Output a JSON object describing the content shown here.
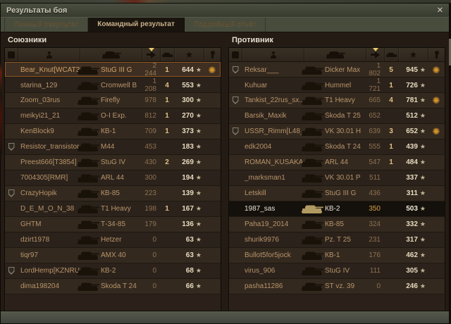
{
  "window": {
    "title": "Результаты боя"
  },
  "icons": {
    "star_glyph": "★",
    "medal_glyph": "✺",
    "close_glyph": "✕"
  },
  "tabs": [
    {
      "label": "Личный результат",
      "active": false
    },
    {
      "label": "Командный результат",
      "active": true
    },
    {
      "label": "Подробный отчёт",
      "active": false
    }
  ],
  "columns": [
    {
      "id": "platoon",
      "icon": "platoon-icon"
    },
    {
      "id": "player",
      "icon": "player-icon"
    },
    {
      "id": "vehicle",
      "icon": "tank-icon"
    },
    {
      "id": "damage",
      "icon": "damage-icon",
      "sorted": "desc"
    },
    {
      "id": "frags",
      "icon": "destroyed-tank-icon"
    },
    {
      "id": "xp",
      "icon": "star-icon"
    },
    {
      "id": "medals",
      "icon": "medal-icon"
    }
  ],
  "colors": {
    "accent_text": "#b8946a",
    "xp_text": "#e8dbbf",
    "frag_text": "#e3c084",
    "damage_text": "#8d7150",
    "self_row_bg": "#14100b",
    "hover_outline": "#8d5926",
    "medal_gold": "#d2962f",
    "panel_bg": "#2b211a",
    "titlebar_bg": "#454939",
    "active_tab_text": "#c9b189",
    "self_tank_icon": "#b19a62"
  },
  "teams": [
    {
      "name": "Союзники",
      "rows": [
        {
          "player": "Bear_Knut[WCAT3]",
          "vehicle": "StuG III G",
          "damage": "2 244",
          "frags": "1",
          "xp": "644",
          "platoon": false,
          "medal": true,
          "highlight": "hover"
        },
        {
          "player": "starina_129",
          "vehicle": "Cromwell B",
          "damage": "1 208",
          "frags": "4",
          "xp": "553",
          "platoon": false,
          "medal": false,
          "highlight": ""
        },
        {
          "player": "Zoom_03rus",
          "vehicle": "Firefly",
          "damage": "978",
          "frags": "1",
          "xp": "300",
          "platoon": false,
          "medal": false,
          "highlight": ""
        },
        {
          "player": "meikyi21_21",
          "vehicle": "O-I Exp.",
          "damage": "812",
          "frags": "1",
          "xp": "270",
          "platoon": false,
          "medal": false,
          "highlight": ""
        },
        {
          "player": "KenBlock9",
          "vehicle": "КВ-1",
          "damage": "709",
          "frags": "1",
          "xp": "373",
          "platoon": false,
          "medal": false,
          "highlight": ""
        },
        {
          "player": "Resistor_transistor",
          "vehicle": "M44",
          "damage": "453",
          "frags": "",
          "xp": "183",
          "platoon": true,
          "medal": false,
          "highlight": ""
        },
        {
          "player": "Preest666[T3854]",
          "vehicle": "StuG IV",
          "damage": "430",
          "frags": "2",
          "xp": "269",
          "platoon": false,
          "medal": false,
          "highlight": ""
        },
        {
          "player": "7004305[RMR]",
          "vehicle": "ARL 44",
          "damage": "300",
          "frags": "",
          "xp": "194",
          "platoon": false,
          "medal": false,
          "highlight": ""
        },
        {
          "player": "CrazyHopik",
          "vehicle": "КВ-85",
          "damage": "223",
          "frags": "",
          "xp": "139",
          "platoon": true,
          "medal": false,
          "highlight": ""
        },
        {
          "player": "D_E_M_O_N_38",
          "vehicle": "T1 Heavy",
          "damage": "198",
          "frags": "1",
          "xp": "167",
          "platoon": false,
          "medal": false,
          "highlight": ""
        },
        {
          "player": "GHTM",
          "vehicle": "Т-34-85",
          "damage": "179",
          "frags": "",
          "xp": "136",
          "platoon": false,
          "medal": false,
          "highlight": ""
        },
        {
          "player": "dzirt1978",
          "vehicle": "Hetzer",
          "damage": "0",
          "frags": "",
          "xp": "63",
          "platoon": false,
          "medal": false,
          "highlight": ""
        },
        {
          "player": "tiqr97",
          "vehicle": "AMX 40",
          "damage": "0",
          "frags": "",
          "xp": "63",
          "platoon": false,
          "medal": false,
          "highlight": ""
        },
        {
          "player": "LordHemp[KZNRU]",
          "vehicle": "КВ-2",
          "damage": "0",
          "frags": "",
          "xp": "68",
          "platoon": true,
          "medal": false,
          "highlight": ""
        },
        {
          "player": "dima198204",
          "vehicle": "Škoda T 24",
          "damage": "0",
          "frags": "",
          "xp": "66",
          "platoon": false,
          "medal": false,
          "highlight": ""
        }
      ]
    },
    {
      "name": "Противник",
      "rows": [
        {
          "player": "Reksar___",
          "vehicle": "Dicker Max",
          "damage": "1 802",
          "frags": "5",
          "xp": "945",
          "platoon": true,
          "medal": true,
          "highlight": ""
        },
        {
          "player": "Kuhuar",
          "vehicle": "Hummel",
          "damage": "1 721",
          "frags": "1",
          "xp": "726",
          "platoon": false,
          "medal": false,
          "highlight": ""
        },
        {
          "player": "Tankist_22rus_sx..",
          "vehicle": "T1 Heavy",
          "damage": "665",
          "frags": "4",
          "xp": "781",
          "platoon": true,
          "medal": true,
          "highlight": ""
        },
        {
          "player": "Barsik_Maxik",
          "vehicle": "Škoda T 25",
          "damage": "652",
          "frags": "",
          "xp": "512",
          "platoon": false,
          "medal": false,
          "highlight": ""
        },
        {
          "player": "USSR_Rimm[L48_]",
          "vehicle": "VK 30.01 H",
          "damage": "639",
          "frags": "3",
          "xp": "652",
          "platoon": true,
          "medal": true,
          "highlight": ""
        },
        {
          "player": "edk2004",
          "vehicle": "Škoda T 24",
          "damage": "555",
          "frags": "1",
          "xp": "439",
          "platoon": false,
          "medal": false,
          "highlight": ""
        },
        {
          "player": "ROMAN_KUSAKA",
          "vehicle": "ARL 44",
          "damage": "547",
          "frags": "1",
          "xp": "484",
          "platoon": false,
          "medal": false,
          "highlight": ""
        },
        {
          "player": "_marksman1",
          "vehicle": "VK 30.01 P",
          "damage": "511",
          "frags": "",
          "xp": "337",
          "platoon": false,
          "medal": false,
          "highlight": ""
        },
        {
          "player": "Letskill",
          "vehicle": "StuG III G",
          "damage": "436",
          "frags": "",
          "xp": "311",
          "platoon": false,
          "medal": false,
          "highlight": ""
        },
        {
          "player": "1987_sas",
          "vehicle": "КВ-2",
          "damage": "350",
          "frags": "",
          "xp": "503",
          "platoon": false,
          "medal": false,
          "highlight": "self"
        },
        {
          "player": "Paha19_2014",
          "vehicle": "КВ-85",
          "damage": "324",
          "frags": "",
          "xp": "332",
          "platoon": false,
          "medal": false,
          "highlight": ""
        },
        {
          "player": "shurik9976",
          "vehicle": "Pz. T 25",
          "damage": "231",
          "frags": "",
          "xp": "317",
          "platoon": false,
          "medal": false,
          "highlight": ""
        },
        {
          "player": "Bullot5for5jock",
          "vehicle": "КВ-1",
          "damage": "176",
          "frags": "",
          "xp": "462",
          "platoon": false,
          "medal": false,
          "highlight": ""
        },
        {
          "player": "virus_906",
          "vehicle": "StuG IV",
          "damage": "111",
          "frags": "",
          "xp": "305",
          "platoon": false,
          "medal": false,
          "highlight": ""
        },
        {
          "player": "pasha11286",
          "vehicle": "ST vz. 39",
          "damage": "0",
          "frags": "",
          "xp": "246",
          "platoon": false,
          "medal": false,
          "highlight": ""
        }
      ]
    }
  ]
}
